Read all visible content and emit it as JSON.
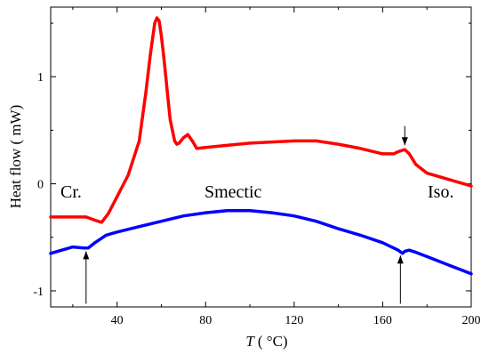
{
  "chart_data": {
    "type": "line",
    "title": "",
    "xlabel_italic": "T",
    "xlabel_unit": "( °C)",
    "ylabel": "Heat flow ( mW)",
    "xlim": [
      10,
      200
    ],
    "ylim": [
      -1.15,
      1.65
    ],
    "xticks": [
      40,
      80,
      120,
      160,
      200
    ],
    "yticks": [
      -1,
      0,
      1
    ],
    "grid": false,
    "series": [
      {
        "color": "#ff0000",
        "x": [
          10,
          20,
          26,
          30,
          33,
          36,
          40,
          45,
          50,
          53,
          55,
          57,
          58,
          59,
          60,
          61,
          62,
          63,
          64,
          65,
          66,
          67,
          68,
          70,
          72,
          74,
          76,
          80,
          90,
          100,
          110,
          120,
          130,
          140,
          150,
          160,
          165,
          167,
          170,
          172,
          175,
          180,
          185,
          190,
          195,
          200
        ],
        "y": [
          -0.31,
          -0.31,
          -0.31,
          -0.34,
          -0.36,
          -0.28,
          -0.12,
          0.08,
          0.4,
          0.85,
          1.2,
          1.5,
          1.55,
          1.52,
          1.38,
          1.2,
          1.0,
          0.8,
          0.6,
          0.5,
          0.4,
          0.37,
          0.38,
          0.43,
          0.46,
          0.4,
          0.33,
          0.34,
          0.36,
          0.38,
          0.39,
          0.4,
          0.4,
          0.37,
          0.33,
          0.28,
          0.28,
          0.3,
          0.32,
          0.28,
          0.18,
          0.1,
          0.07,
          0.04,
          0.01,
          -0.02
        ]
      },
      {
        "color": "#0000ff",
        "x": [
          10,
          15,
          20,
          25,
          27,
          30,
          35,
          40,
          50,
          60,
          70,
          80,
          90,
          100,
          110,
          120,
          130,
          140,
          150,
          160,
          165,
          167,
          169,
          170,
          172,
          175,
          180,
          185,
          190,
          195,
          200
        ],
        "y": [
          -0.65,
          -0.62,
          -0.59,
          -0.6,
          -0.6,
          -0.55,
          -0.48,
          -0.45,
          -0.4,
          -0.35,
          -0.3,
          -0.27,
          -0.25,
          -0.25,
          -0.27,
          -0.3,
          -0.35,
          -0.42,
          -0.48,
          -0.55,
          -0.6,
          -0.62,
          -0.65,
          -0.63,
          -0.62,
          -0.64,
          -0.68,
          -0.72,
          -0.76,
          -0.8,
          -0.84
        ]
      }
    ],
    "annotations": {
      "cr": "Cr.",
      "smectic": "Smectic",
      "iso": "Iso."
    },
    "arrows": [
      {
        "x": 170,
        "direction": "down",
        "y_from": 0.54,
        "y_to": 0.36
      },
      {
        "x": 26,
        "direction": "up",
        "y_from": -1.12,
        "y_to": -0.63
      },
      {
        "x": 168,
        "direction": "up",
        "y_from": -1.12,
        "y_to": -0.67
      }
    ]
  }
}
